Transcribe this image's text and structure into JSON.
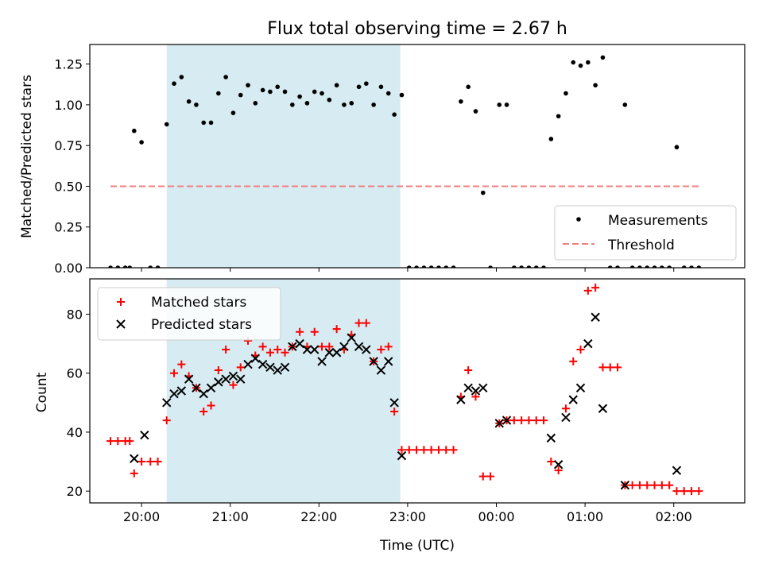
{
  "figure": {
    "title": "Flux total observing time = 2.67 h"
  },
  "chart_data": [
    {
      "type": "scatter",
      "panel": "top",
      "ylabel": "Matched/Predicted stars",
      "xlabel": "",
      "xlim": [
        "19:25",
        "02:48"
      ],
      "ylim": [
        0,
        1.37
      ],
      "yticks": [
        0.0,
        0.25,
        0.5,
        0.75,
        1.0,
        1.25
      ],
      "ytick_labels": [
        "0.00",
        "0.25",
        "0.50",
        "0.75",
        "1.00",
        "1.25"
      ],
      "grid": false,
      "legend_position": "lower right",
      "shaded_interval": [
        "20:17",
        "22:55"
      ],
      "shaded_color": "#add8e6",
      "series": [
        {
          "name": "Measurements",
          "marker": "dot",
          "color": "#000000",
          "points": [
            [
              "19:39",
              0
            ],
            [
              "19:44",
              0
            ],
            [
              "19:49",
              0
            ],
            [
              "19:52",
              0
            ],
            [
              "19:55",
              0.84
            ],
            [
              "20:00",
              0.77
            ],
            [
              "20:06",
              0
            ],
            [
              "20:11",
              0
            ],
            [
              "20:17",
              0.88
            ],
            [
              "20:22",
              1.13
            ],
            [
              "20:27",
              1.17
            ],
            [
              "20:32",
              1.02
            ],
            [
              "20:37",
              1.0
            ],
            [
              "20:42",
              0.89
            ],
            [
              "20:47",
              0.89
            ],
            [
              "20:52",
              1.07
            ],
            [
              "20:57",
              1.17
            ],
            [
              "21:02",
              0.95
            ],
            [
              "21:07",
              1.06
            ],
            [
              "21:12",
              1.12
            ],
            [
              "21:17",
              1.01
            ],
            [
              "21:22",
              1.09
            ],
            [
              "21:27",
              1.08
            ],
            [
              "21:32",
              1.11
            ],
            [
              "21:37",
              1.08
            ],
            [
              "21:42",
              1.0
            ],
            [
              "21:47",
              1.05
            ],
            [
              "21:52",
              1.01
            ],
            [
              "21:57",
              1.08
            ],
            [
              "22:02",
              1.07
            ],
            [
              "22:07",
              1.03
            ],
            [
              "22:12",
              1.12
            ],
            [
              "22:17",
              1.0
            ],
            [
              "22:22",
              1.01
            ],
            [
              "22:27",
              1.11
            ],
            [
              "22:32",
              1.13
            ],
            [
              "22:37",
              1.0
            ],
            [
              "22:42",
              1.11
            ],
            [
              "22:47",
              1.07
            ],
            [
              "22:51",
              0.94
            ],
            [
              "22:56",
              1.06
            ],
            [
              "23:01",
              0
            ],
            [
              "23:06",
              0
            ],
            [
              "23:11",
              0
            ],
            [
              "23:16",
              0
            ],
            [
              "23:21",
              0
            ],
            [
              "23:26",
              0
            ],
            [
              "23:31",
              0
            ],
            [
              "23:36",
              1.02
            ],
            [
              "23:41",
              1.11
            ],
            [
              "23:46",
              0.96
            ],
            [
              "23:51",
              0.46
            ],
            [
              "23:56",
              0
            ],
            [
              "00:02",
              1.0
            ],
            [
              "00:07",
              1.0
            ],
            [
              "00:12",
              0
            ],
            [
              "00:17",
              0
            ],
            [
              "00:22",
              0
            ],
            [
              "00:27",
              0
            ],
            [
              "00:32",
              0
            ],
            [
              "00:37",
              0.79
            ],
            [
              "00:42",
              0.93
            ],
            [
              "00:47",
              1.07
            ],
            [
              "00:52",
              1.26
            ],
            [
              "00:57",
              1.24
            ],
            [
              "01:02",
              1.26
            ],
            [
              "01:07",
              1.12
            ],
            [
              "01:12",
              1.29
            ],
            [
              "01:17",
              0
            ],
            [
              "01:22",
              0
            ],
            [
              "01:27",
              1.0
            ],
            [
              "01:32",
              0
            ],
            [
              "01:37",
              0
            ],
            [
              "01:42",
              0
            ],
            [
              "01:47",
              0
            ],
            [
              "01:52",
              0
            ],
            [
              "01:57",
              0
            ],
            [
              "02:02",
              0.74
            ],
            [
              "02:07",
              0
            ],
            [
              "02:12",
              0
            ],
            [
              "02:17",
              0
            ]
          ]
        },
        {
          "name": "Threshold",
          "marker": "dashed-line",
          "color": "#f08080",
          "points": [
            [
              "19:39",
              0.5
            ],
            [
              "02:17",
              0.5
            ]
          ]
        }
      ]
    },
    {
      "type": "scatter",
      "panel": "bottom",
      "xlabel": "Time (UTC)",
      "ylabel": "Count",
      "xlim": [
        "19:25",
        "02:48"
      ],
      "ylim": [
        16,
        92
      ],
      "xticks": [
        "20:00",
        "21:00",
        "22:00",
        "23:00",
        "00:00",
        "01:00",
        "02:00"
      ],
      "yticks": [
        20,
        40,
        60,
        80
      ],
      "grid": false,
      "legend_position": "upper left",
      "shaded_interval": [
        "20:17",
        "22:55"
      ],
      "shaded_color": "#add8e6",
      "series": [
        {
          "name": "Matched stars",
          "marker": "plus",
          "color": "#ff0000",
          "points": [
            [
              "19:39",
              37
            ],
            [
              "19:44",
              37
            ],
            [
              "19:49",
              37
            ],
            [
              "19:52",
              37
            ],
            [
              "19:55",
              26
            ],
            [
              "20:00",
              30
            ],
            [
              "20:06",
              30
            ],
            [
              "20:11",
              30
            ],
            [
              "20:17",
              44
            ],
            [
              "20:22",
              60
            ],
            [
              "20:27",
              63
            ],
            [
              "20:32",
              59
            ],
            [
              "20:37",
              55
            ],
            [
              "20:42",
              47
            ],
            [
              "20:47",
              49
            ],
            [
              "20:52",
              61
            ],
            [
              "20:57",
              68
            ],
            [
              "21:02",
              56
            ],
            [
              "21:07",
              62
            ],
            [
              "21:12",
              71
            ],
            [
              "21:17",
              66
            ],
            [
              "21:22",
              69
            ],
            [
              "21:27",
              67
            ],
            [
              "21:32",
              68
            ],
            [
              "21:37",
              67
            ],
            [
              "21:42",
              69
            ],
            [
              "21:47",
              74
            ],
            [
              "21:52",
              69
            ],
            [
              "21:57",
              74
            ],
            [
              "22:02",
              69
            ],
            [
              "22:07",
              69
            ],
            [
              "22:12",
              75
            ],
            [
              "22:17",
              68
            ],
            [
              "22:22",
              73
            ],
            [
              "22:27",
              77
            ],
            [
              "22:32",
              77
            ],
            [
              "22:37",
              64
            ],
            [
              "22:42",
              68
            ],
            [
              "22:47",
              69
            ],
            [
              "22:51",
              47
            ],
            [
              "22:56",
              34
            ],
            [
              "23:01",
              34
            ],
            [
              "23:06",
              34
            ],
            [
              "23:11",
              34
            ],
            [
              "23:16",
              34
            ],
            [
              "23:21",
              34
            ],
            [
              "23:26",
              34
            ],
            [
              "23:31",
              34
            ],
            [
              "23:36",
              52
            ],
            [
              "23:41",
              61
            ],
            [
              "23:46",
              52
            ],
            [
              "23:51",
              25
            ],
            [
              "23:56",
              25
            ],
            [
              "00:02",
              43
            ],
            [
              "00:07",
              44
            ],
            [
              "00:12",
              44
            ],
            [
              "00:17",
              44
            ],
            [
              "00:22",
              44
            ],
            [
              "00:27",
              44
            ],
            [
              "00:32",
              44
            ],
            [
              "00:37",
              30
            ],
            [
              "00:42",
              27
            ],
            [
              "00:47",
              48
            ],
            [
              "00:52",
              64
            ],
            [
              "00:57",
              68
            ],
            [
              "01:02",
              88
            ],
            [
              "01:07",
              89
            ],
            [
              "01:12",
              62
            ],
            [
              "01:17",
              62
            ],
            [
              "01:22",
              62
            ],
            [
              "01:27",
              22
            ],
            [
              "01:32",
              22
            ],
            [
              "01:37",
              22
            ],
            [
              "01:42",
              22
            ],
            [
              "01:47",
              22
            ],
            [
              "01:52",
              22
            ],
            [
              "01:57",
              22
            ],
            [
              "02:02",
              20
            ],
            [
              "02:07",
              20
            ],
            [
              "02:12",
              20
            ],
            [
              "02:17",
              20
            ]
          ]
        },
        {
          "name": "Predicted stars",
          "marker": "x",
          "color": "#000000",
          "points": [
            [
              "19:55",
              31
            ],
            [
              "20:02",
              39
            ],
            [
              "20:17",
              50
            ],
            [
              "20:22",
              53
            ],
            [
              "20:27",
              54
            ],
            [
              "20:32",
              58
            ],
            [
              "20:37",
              55
            ],
            [
              "20:42",
              53
            ],
            [
              "20:47",
              55
            ],
            [
              "20:52",
              57
            ],
            [
              "20:57",
              58
            ],
            [
              "21:02",
              59
            ],
            [
              "21:07",
              58
            ],
            [
              "21:12",
              63
            ],
            [
              "21:17",
              65
            ],
            [
              "21:22",
              63
            ],
            [
              "21:27",
              62
            ],
            [
              "21:32",
              61
            ],
            [
              "21:37",
              62
            ],
            [
              "21:42",
              69
            ],
            [
              "21:47",
              70
            ],
            [
              "21:52",
              68
            ],
            [
              "21:57",
              68
            ],
            [
              "22:02",
              64
            ],
            [
              "22:07",
              67
            ],
            [
              "22:12",
              67
            ],
            [
              "22:17",
              69
            ],
            [
              "22:22",
              72
            ],
            [
              "22:27",
              69
            ],
            [
              "22:32",
              68
            ],
            [
              "22:37",
              64
            ],
            [
              "22:42",
              61
            ],
            [
              "22:47",
              64
            ],
            [
              "22:51",
              50
            ],
            [
              "22:56",
              32
            ],
            [
              "23:36",
              51
            ],
            [
              "23:41",
              55
            ],
            [
              "23:46",
              54
            ],
            [
              "23:51",
              55
            ],
            [
              "00:02",
              43
            ],
            [
              "00:07",
              44
            ],
            [
              "00:37",
              38
            ],
            [
              "00:42",
              29
            ],
            [
              "00:47",
              45
            ],
            [
              "00:52",
              51
            ],
            [
              "00:57",
              55
            ],
            [
              "01:02",
              70
            ],
            [
              "01:07",
              79
            ],
            [
              "01:12",
              48
            ],
            [
              "01:27",
              22
            ],
            [
              "02:02",
              27
            ]
          ]
        }
      ]
    }
  ]
}
